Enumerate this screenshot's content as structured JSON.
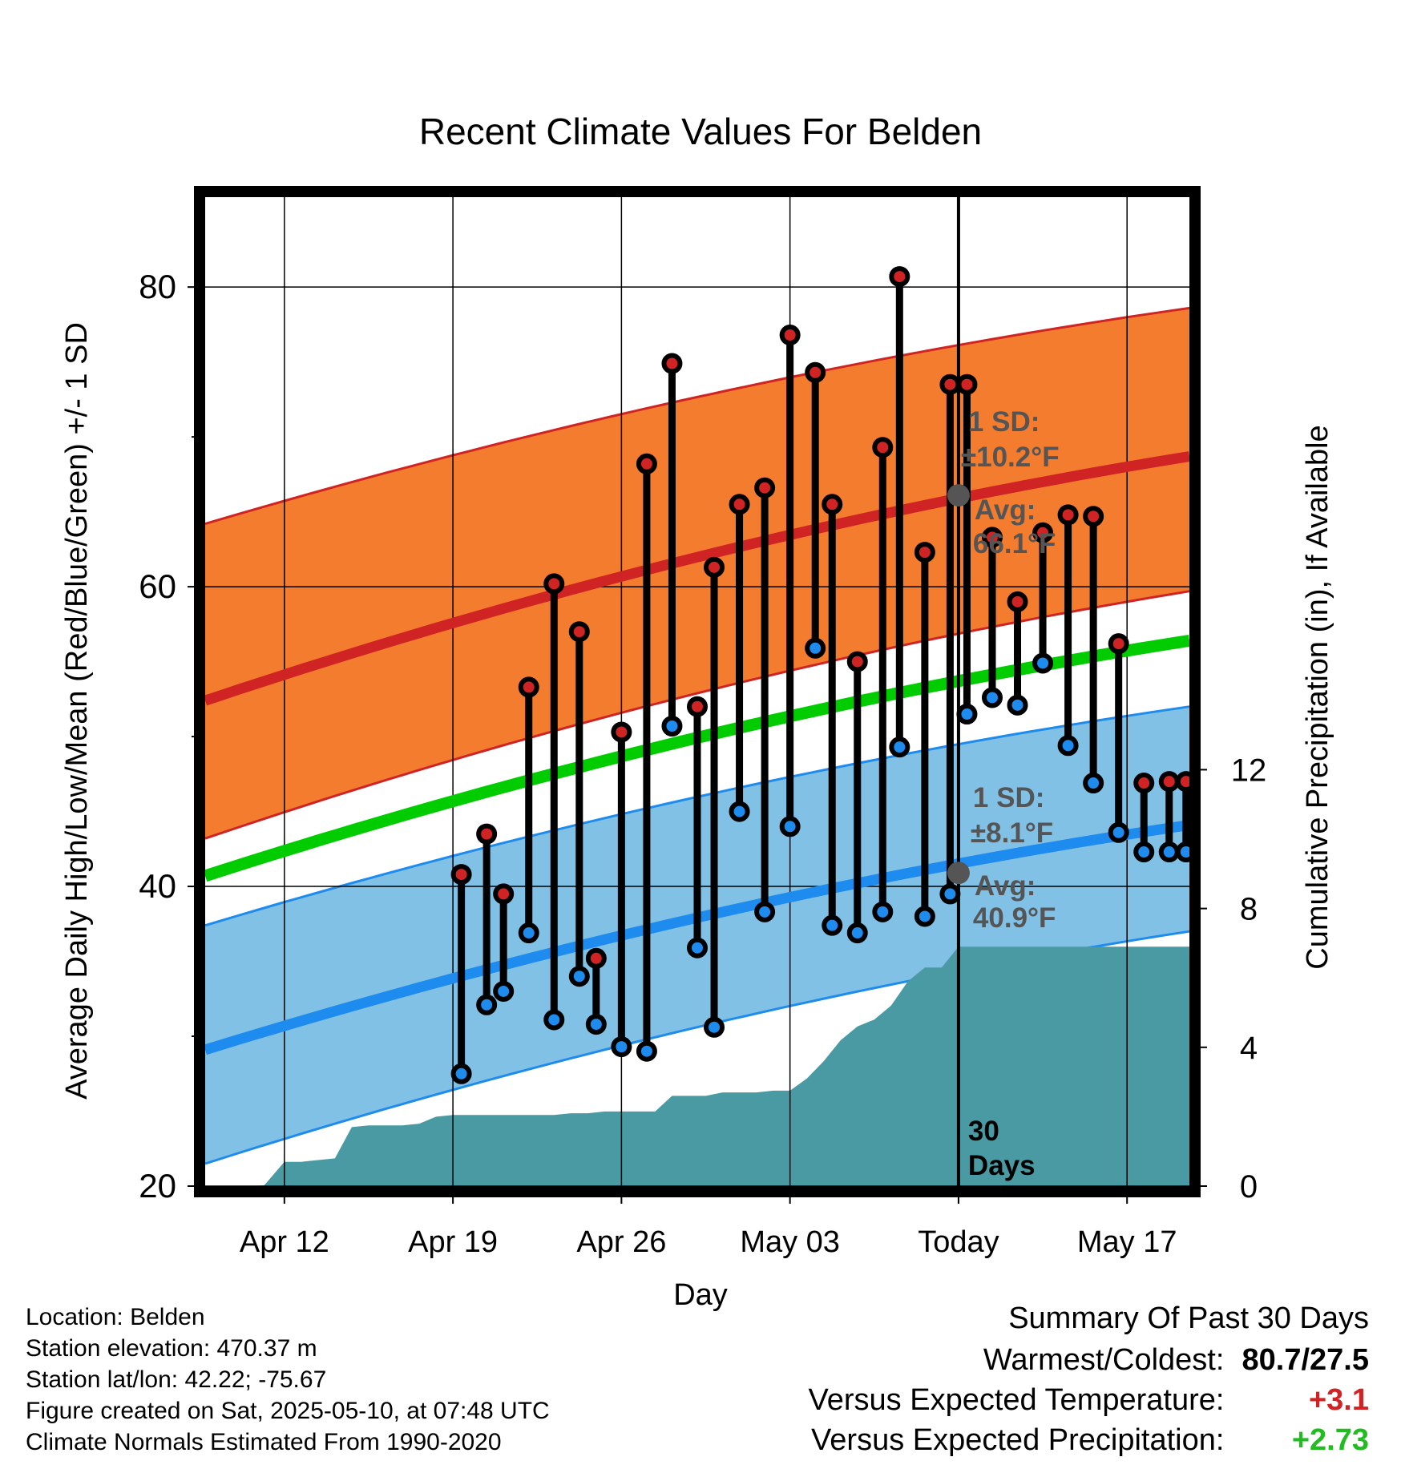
{
  "chart_data": {
    "type": "line",
    "title": "Recent Climate Values For Belden",
    "xlabel": "Day",
    "ylabel_left": "Average Daily High/Low/Mean (Red/Blue/Green) +/- 1 SD",
    "ylabel_right": "Cumulative Precipitation (in), If Available",
    "ylim_left": [
      20,
      86
    ],
    "ylim_right": [
      0,
      28.5
    ],
    "xlim": [
      -4.7,
      53.7
    ],
    "x_tick_days": [
      0,
      10,
      20,
      30,
      40,
      50
    ],
    "x_tick_labels": [
      "Apr 12",
      "Apr 19",
      "Apr 26",
      "May 03",
      "Today",
      "May 17"
    ],
    "y_ticks_left": [
      20,
      40,
      60,
      80
    ],
    "y_ticks_right": [
      0,
      4,
      8,
      12
    ],
    "today_day": 40,
    "days_label": [
      "30",
      "Days"
    ],
    "colors": {
      "high_band": "#f47c2f",
      "high_line": "#d02424",
      "low_band": "#82c1e6",
      "low_line": "#1e8bee",
      "mean_line": "#00cc00",
      "precip": "#4a9aa4",
      "high_dot": "#d02424",
      "low_dot": "#1e8bee",
      "annotation": "#555555"
    },
    "normal_days": [
      -4.7,
      53.7
    ],
    "normal_high": [
      52.4,
      68.7
    ],
    "normal_high_sd_upper": [
      64.2,
      78.6
    ],
    "normal_high_sd_lower": [
      43.2,
      59.7
    ],
    "normal_low": [
      29.1,
      44.1
    ],
    "normal_low_sd_upper": [
      37.4,
      52.0
    ],
    "normal_low_sd_lower": [
      21.5,
      37.0
    ],
    "normal_mean": [
      40.7,
      56.4
    ],
    "series": [
      {
        "name": "Daily High",
        "days": [
          10.5,
          12,
          13,
          14.5,
          16,
          17.5,
          18.5,
          20,
          21.5,
          23,
          24.5,
          25.5,
          27,
          28.5,
          30,
          31.5,
          32.5,
          34,
          35.5,
          36.5,
          38,
          39.5,
          40.5,
          42,
          43.5,
          45,
          46.5,
          48,
          49.5,
          51,
          52.5,
          53.5
        ],
        "values": [
          40.8,
          43.5,
          39.5,
          53.3,
          60.2,
          57.0,
          35.2,
          50.3,
          68.2,
          74.9,
          52.0,
          61.3,
          65.5,
          66.6,
          76.8,
          74.3,
          65.5,
          55.0,
          69.3,
          80.7,
          62.3,
          73.5,
          73.5,
          63.3,
          59.0,
          63.6,
          64.8,
          64.7,
          56.2,
          46.9,
          47,
          47
        ]
      },
      {
        "name": "Daily Low",
        "values": [
          27.5,
          32.1,
          33.0,
          36.9,
          31.1,
          34.0,
          30.8,
          29.3,
          29.0,
          50.7,
          35.9,
          30.6,
          45.0,
          38.3,
          44.0,
          55.9,
          37.4,
          36.9,
          38.3,
          49.3,
          38.0,
          39.5,
          51.5,
          52.6,
          52.1,
          54.9,
          49.4,
          46.9,
          43.6,
          42.3,
          42.3,
          42.3
        ]
      },
      {
        "name": "Cumulative Precipitation",
        "days": [
          -4.7,
          -2.5,
          -1.2,
          0,
          1,
          2,
          3,
          4,
          5,
          6,
          7,
          8,
          9,
          10,
          11,
          12,
          13,
          14,
          15,
          16,
          17,
          18,
          19,
          20,
          21,
          22,
          23,
          24,
          25,
          26,
          27,
          28,
          29,
          30,
          31,
          32,
          33,
          34,
          35,
          36,
          37,
          38,
          39,
          40,
          53.7
        ],
        "values": [
          0,
          0,
          0.02,
          0.7,
          0.7,
          0.75,
          0.8,
          1.7,
          1.75,
          1.75,
          1.75,
          1.8,
          2.0,
          2.05,
          2.05,
          2.05,
          2.05,
          2.05,
          2.05,
          2.05,
          2.1,
          2.1,
          2.15,
          2.15,
          2.15,
          2.15,
          2.6,
          2.6,
          2.6,
          2.7,
          2.7,
          2.7,
          2.75,
          2.75,
          3.1,
          3.6,
          4.2,
          4.6,
          4.8,
          5.2,
          5.9,
          6.3,
          6.3,
          6.9,
          6.9
        ]
      }
    ],
    "annotations": {
      "high_sd_label": "1 SD:",
      "high_sd_value": "±10.2°F",
      "high_avg_label": "Avg:",
      "high_avg_value": "66.1°F",
      "high_avg": 66.1,
      "low_sd_label": "1 SD:",
      "low_sd_value": "±8.1°F",
      "low_avg_label": "Avg:",
      "low_avg_value": "40.9°F",
      "low_avg": 40.9
    }
  },
  "footer": {
    "location": "Location: Belden",
    "elevation": "Station elevation: 470.37 m",
    "latlon": "Station lat/lon: 42.22; -75.67",
    "created": "Figure created on Sat, 2025-05-10, at 07:48 UTC",
    "normals": "Climate Normals Estimated From 1990-2020"
  },
  "summary": {
    "title": "Summary Of Past 30 Days",
    "warmest_label": "Warmest/Coldest:",
    "warmest_value": "80.7/27.5",
    "temp_label": "Versus Expected Temperature:",
    "temp_value": "+3.1",
    "temp_color": "#d02424",
    "precip_label": "Versus Expected Precipitation:",
    "precip_value": "+2.73",
    "precip_color": "#22bb22"
  }
}
